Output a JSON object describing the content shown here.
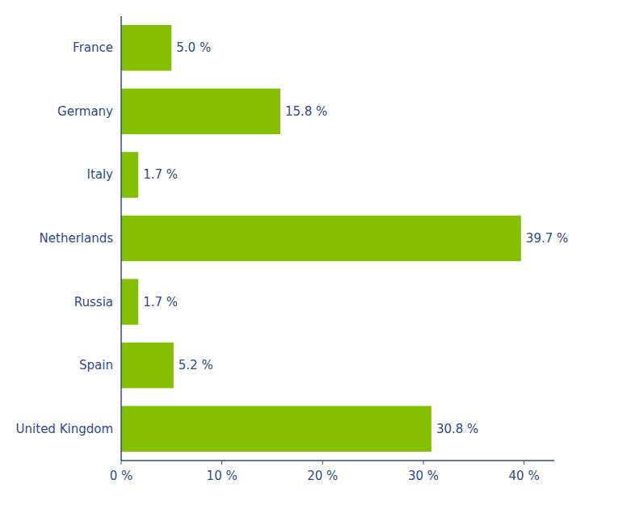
{
  "chart_data": {
    "type": "bar",
    "orientation": "horizontal",
    "categories": [
      "France",
      "Germany",
      "Italy",
      "Netherlands",
      "Russia",
      "Spain",
      "United Kingdom"
    ],
    "values": [
      5.0,
      15.8,
      1.7,
      39.7,
      1.7,
      5.2,
      30.8
    ],
    "value_labels": [
      "5.0 %",
      "15.8 %",
      "1.7 %",
      "39.7 %",
      "1.7 %",
      "5.2 %",
      "30.8 %"
    ],
    "color": "#84c000",
    "xlim": [
      0,
      43
    ],
    "xticks": [
      {
        "value": 0,
        "label": "0 %"
      },
      {
        "value": 10,
        "label": "10 %"
      },
      {
        "value": 20,
        "label": "20 %"
      },
      {
        "value": 30,
        "label": "30 %"
      },
      {
        "value": 40,
        "label": "40 %"
      }
    ],
    "grid": false,
    "data_labels": true
  }
}
